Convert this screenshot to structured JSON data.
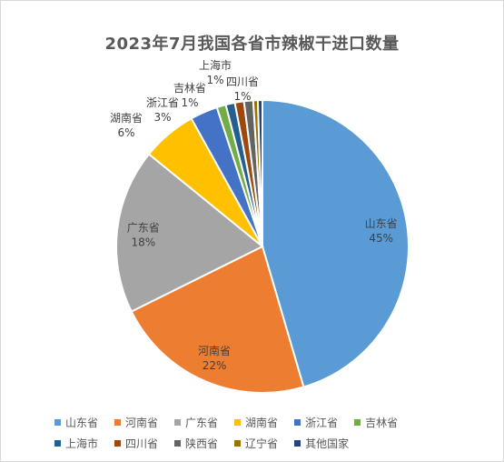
{
  "chart_data": {
    "type": "pie",
    "title": "2023年7月我国各省市辣椒干进口数量",
    "categories": [
      "山东省",
      "河南省",
      "广东省",
      "湖南省",
      "浙江省",
      "吉林省",
      "上海市",
      "四川省",
      "陕西省",
      "辽宁省",
      "其他国家"
    ],
    "values": [
      45,
      22,
      18,
      6,
      3,
      1,
      1,
      1,
      1,
      0.5,
      0.5
    ],
    "data_labels": {
      "山东省": "45%",
      "河南省": "22%",
      "广东省": "18%",
      "湖南省": "6%",
      "浙江省": "3%",
      "吉林省": "1%",
      "上海市": "1%",
      "四川省": "1%"
    },
    "colors": [
      "#5b9bd5",
      "#ed7d31",
      "#a5a5a5",
      "#ffc000",
      "#4472c4",
      "#70ad47",
      "#255e91",
      "#9e480e",
      "#636363",
      "#997300",
      "#264478"
    ],
    "legend_placement": "bottom"
  }
}
